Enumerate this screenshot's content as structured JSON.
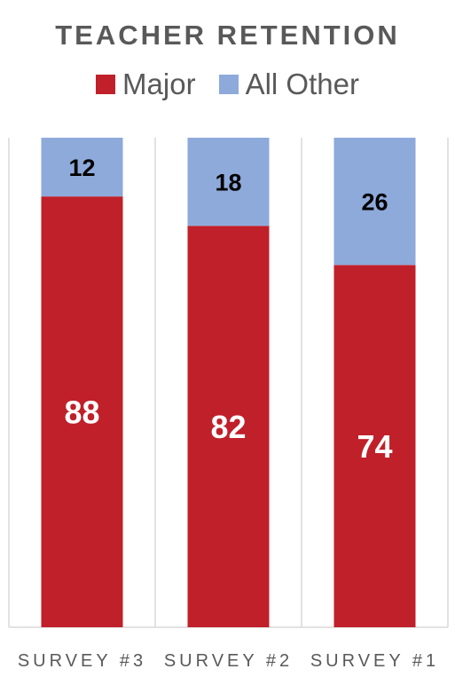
{
  "chart_data": {
    "type": "bar",
    "stacked": true,
    "title": "TEACHER RETENTION",
    "categories": [
      "SURVEY #3",
      "SURVEY #2",
      "SURVEY #1"
    ],
    "series": [
      {
        "name": "Major",
        "values": [
          88,
          82,
          74
        ],
        "color": "#c0202a",
        "label_color": "#ffffff"
      },
      {
        "name": "All Other",
        "values": [
          12,
          18,
          26
        ],
        "color": "#8eaadb",
        "label_color": "#000000"
      }
    ],
    "ylim": [
      0,
      100
    ],
    "grid": false,
    "legend_position": "top"
  }
}
